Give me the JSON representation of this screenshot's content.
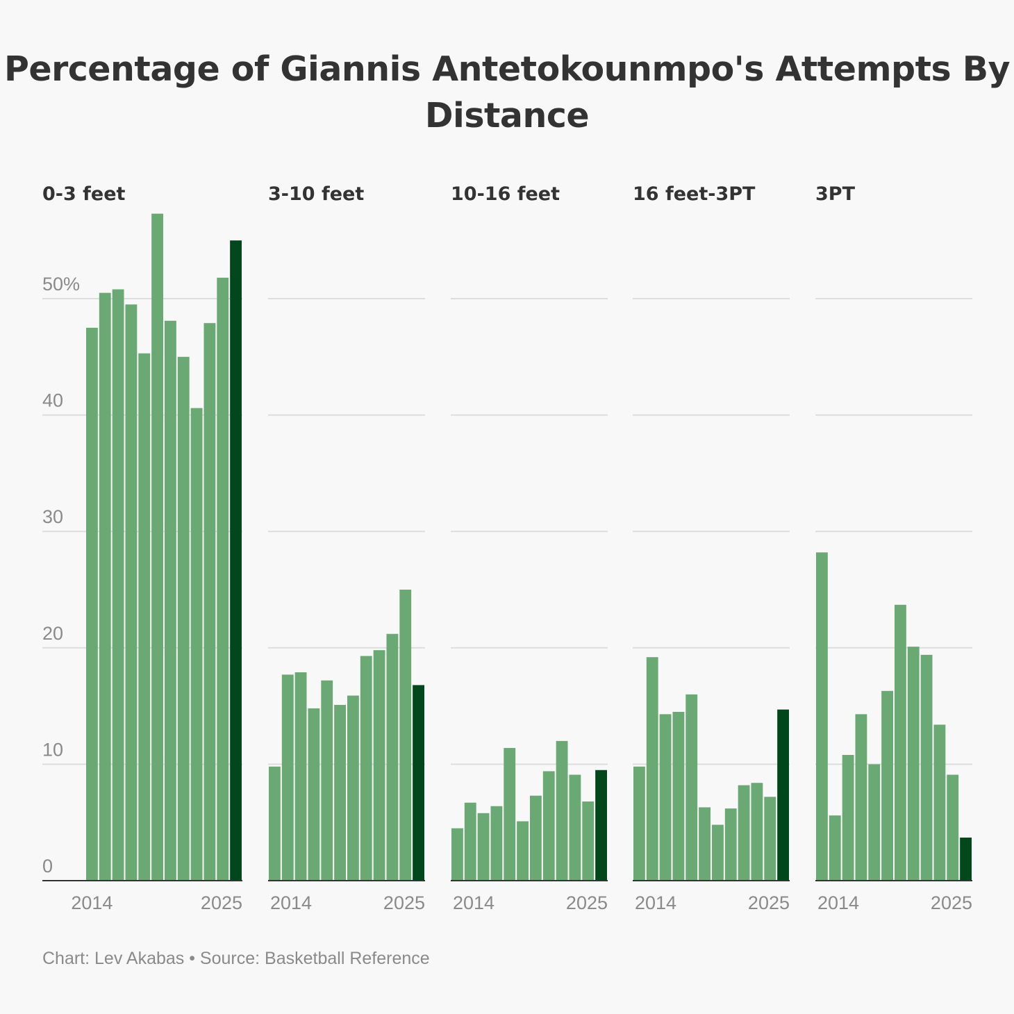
{
  "title": "Percentage of Giannis Antetokounmpo's Attempts By Distance",
  "footer": "Chart: Lev Akabas • Source: Basketball Reference",
  "colors": {
    "bar": "#6aa874",
    "highlight": "#00471b",
    "background": "#f8f8f8"
  },
  "chart_data": {
    "type": "bar",
    "layout": "small-multiples",
    "title": "Percentage of Giannis Antetokounmpo's Attempts By Distance",
    "ylim": [
      0,
      57.5
    ],
    "yticks": [
      0,
      10,
      20,
      30,
      40,
      50
    ],
    "ytick_labels": [
      "0",
      "10",
      "20",
      "30",
      "40",
      "50%"
    ],
    "xtick_labels": [
      "2014",
      "2025"
    ],
    "grid": true,
    "highlight_last_bar": true,
    "series": [
      {
        "name": "0-3 feet",
        "values": [
          47.5,
          50.5,
          50.8,
          49.5,
          45.3,
          57.3,
          48.1,
          45.0,
          40.6,
          47.9,
          51.8,
          55.0
        ]
      },
      {
        "name": "3-10 feet",
        "values": [
          9.8,
          17.7,
          17.9,
          14.8,
          17.2,
          15.1,
          15.9,
          19.3,
          19.8,
          21.2,
          25.0,
          16.8
        ]
      },
      {
        "name": "10-16 feet",
        "values": [
          4.5,
          6.7,
          5.8,
          6.4,
          11.4,
          5.1,
          7.3,
          9.4,
          12.0,
          9.1,
          6.8,
          9.5
        ]
      },
      {
        "name": "16 feet-3PT",
        "values": [
          9.8,
          19.2,
          14.3,
          14.5,
          16.0,
          6.3,
          4.8,
          6.2,
          8.2,
          8.4,
          7.2,
          14.7
        ]
      },
      {
        "name": "3PT",
        "values": [
          28.2,
          5.6,
          10.8,
          14.3,
          10.0,
          16.3,
          23.7,
          20.1,
          19.4,
          13.4,
          9.1,
          3.7
        ]
      }
    ]
  }
}
